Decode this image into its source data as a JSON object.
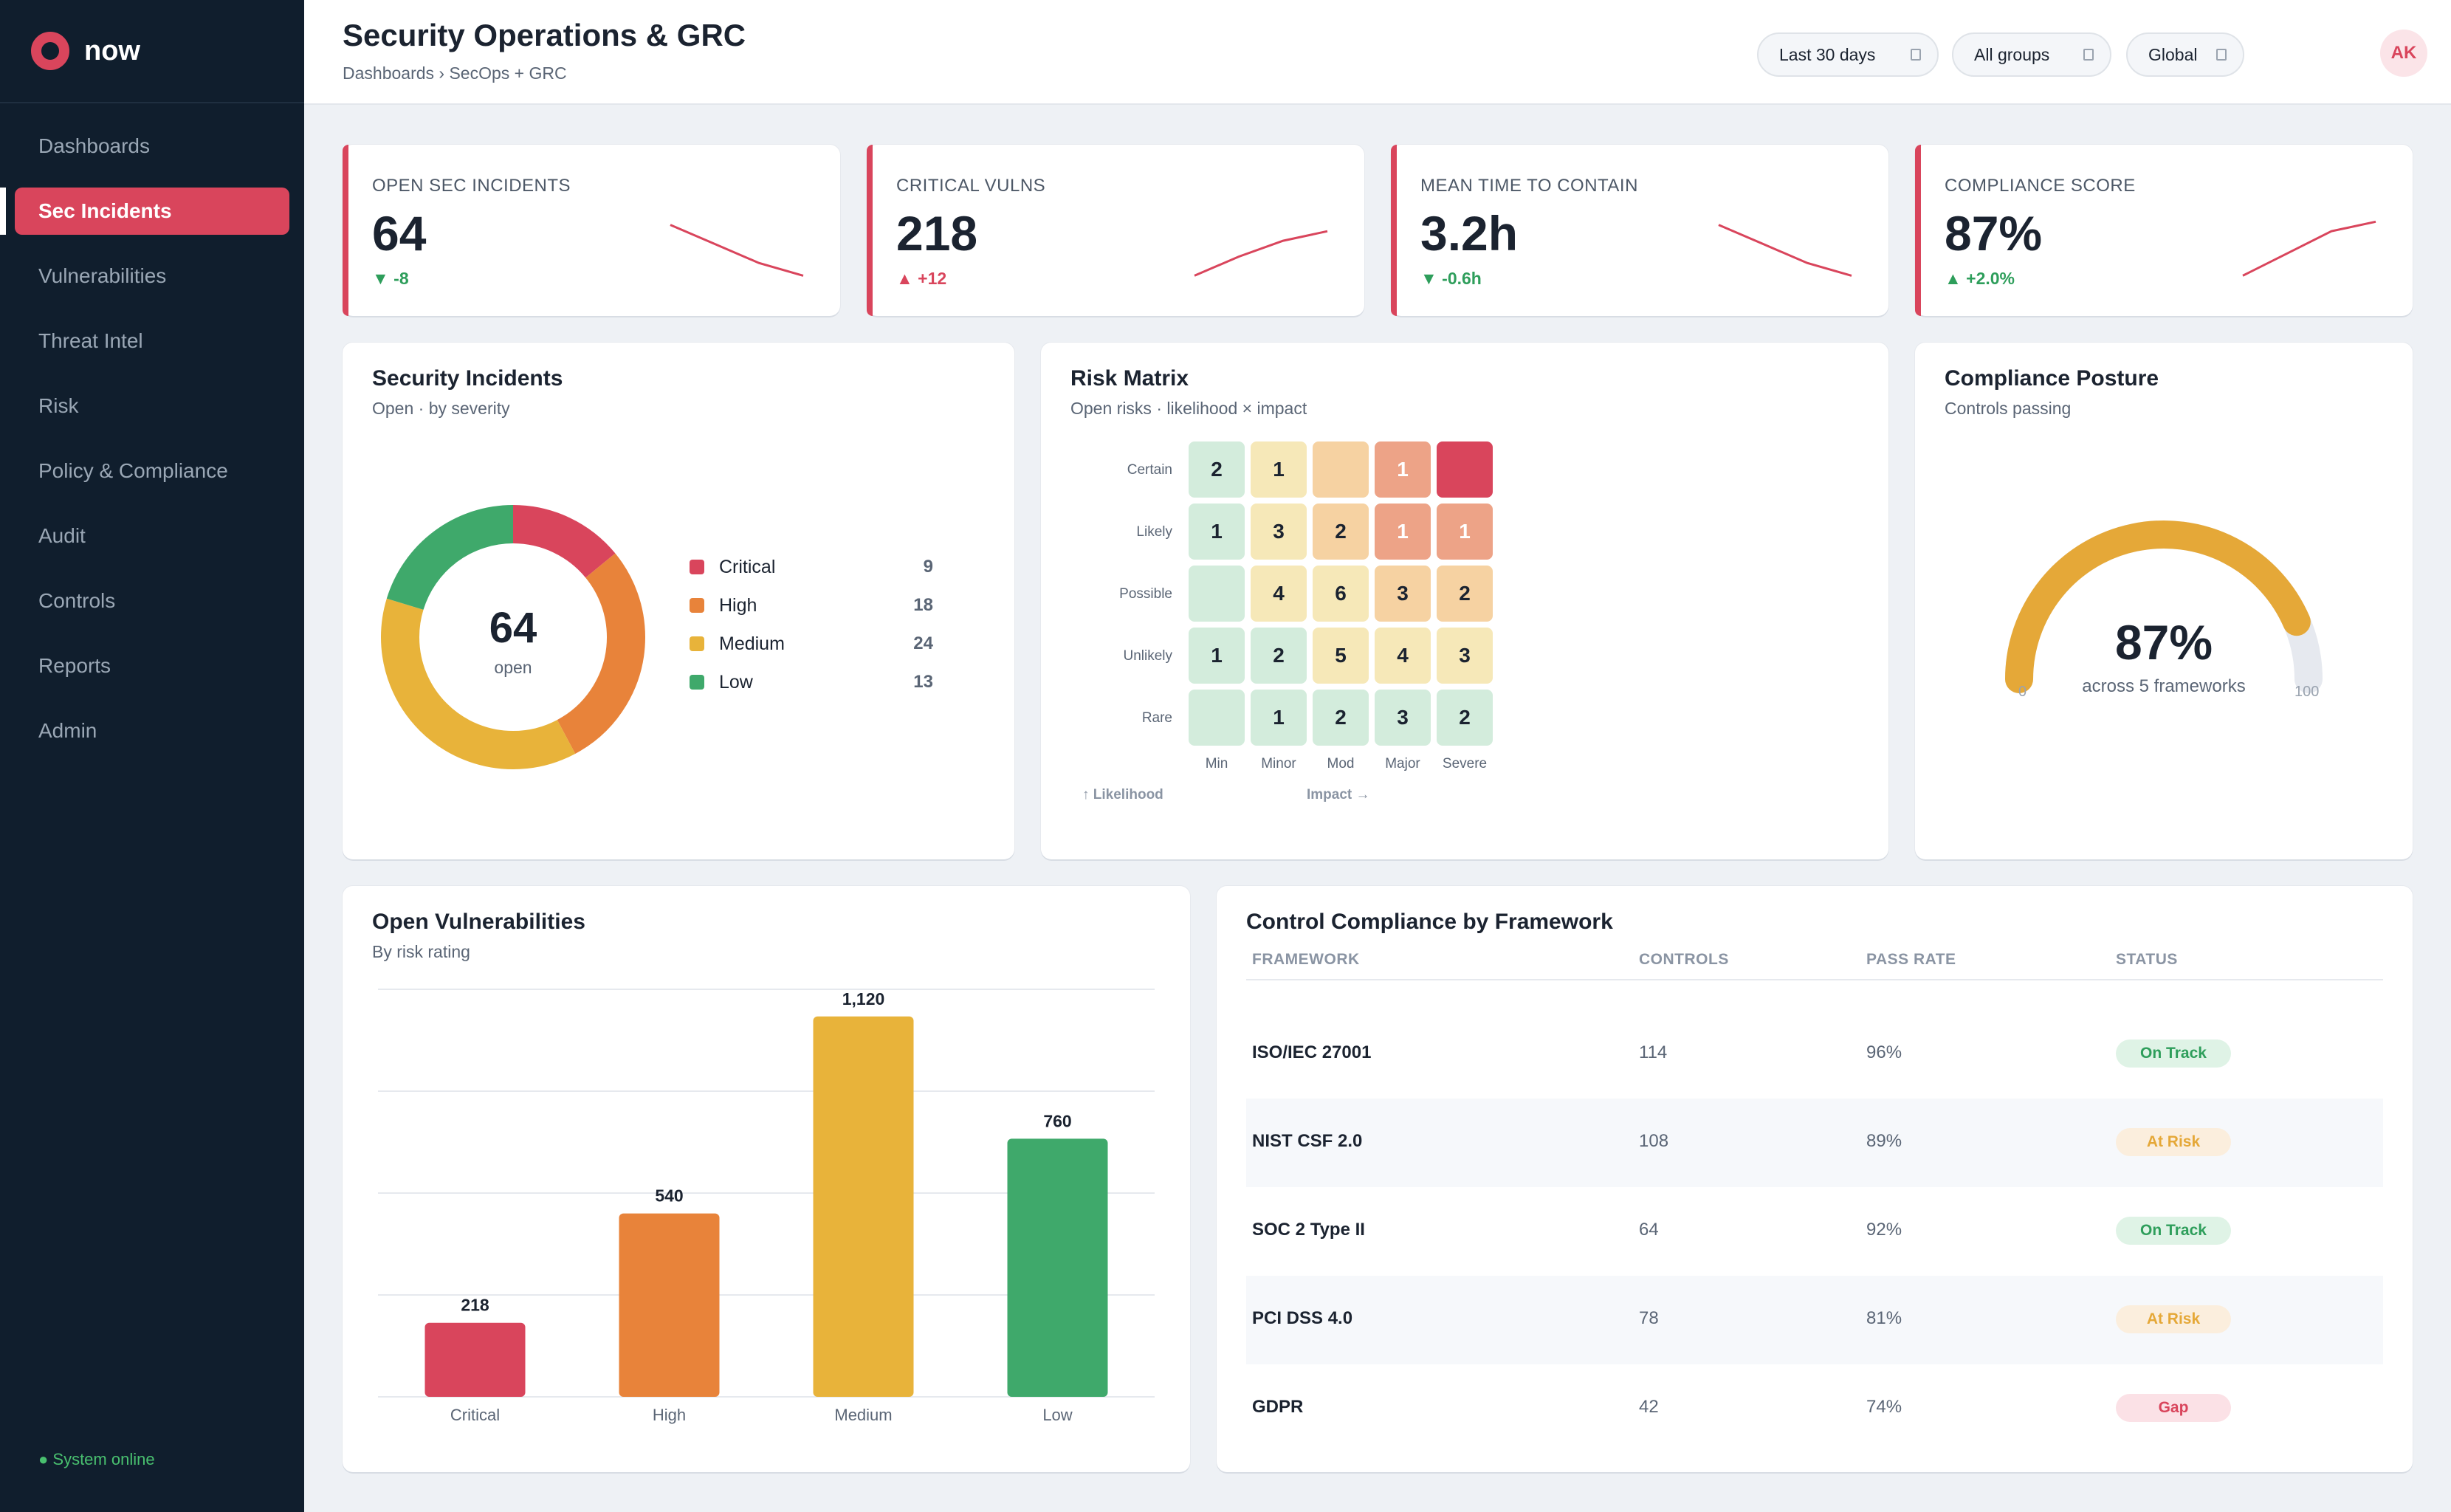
{
  "brand": {
    "name": "now"
  },
  "sidebar": {
    "items": [
      {
        "label": "Dashboards",
        "active": false
      },
      {
        "label": "Sec Incidents",
        "active": true
      },
      {
        "label": "Vulnerabilities",
        "active": false
      },
      {
        "label": "Threat Intel",
        "active": false
      },
      {
        "label": "Risk",
        "active": false
      },
      {
        "label": "Policy & Compliance",
        "active": false
      },
      {
        "label": "Audit",
        "active": false
      },
      {
        "label": "Controls",
        "active": false
      },
      {
        "label": "Reports",
        "active": false
      },
      {
        "label": "Admin",
        "active": false
      }
    ],
    "status": "● System online"
  },
  "header": {
    "title": "Security Operations & GRC",
    "breadcrumb": "Dashboards › SecOps + GRC",
    "filters": [
      {
        "label": "Last 30 days"
      },
      {
        "label": "All groups"
      },
      {
        "label": "Global"
      }
    ],
    "avatar": "AK"
  },
  "kpis": [
    {
      "label": "OPEN SEC INCIDENTS",
      "value": "64",
      "delta": "▼ -8",
      "tone": "good",
      "trend": [
        9,
        6,
        3,
        1
      ]
    },
    {
      "label": "CRITICAL VULNS",
      "value": "218",
      "delta": "▲ +12",
      "tone": "bad",
      "trend": [
        1,
        4,
        6.5,
        8
      ]
    },
    {
      "label": "MEAN TIME TO CONTAIN",
      "value": "3.2h",
      "delta": "▼ -0.6h",
      "tone": "good",
      "trend": [
        9,
        6,
        3,
        1
      ]
    },
    {
      "label": "COMPLIANCE SCORE",
      "value": "87%",
      "delta": "▲ +2.0%",
      "tone": "good",
      "trend": [
        1,
        4.5,
        8,
        9.5
      ]
    }
  ],
  "incidents": {
    "title": "Security Incidents",
    "subtitle": "Open · by severity",
    "total": "64",
    "total_label": "open",
    "segments": [
      {
        "name": "Critical",
        "count": "9",
        "value": 9,
        "color": "#d9455c"
      },
      {
        "name": "High",
        "count": "18",
        "value": 18,
        "color": "#e8833a"
      },
      {
        "name": "Medium",
        "count": "24",
        "value": 24,
        "color": "#e8b33a"
      },
      {
        "name": "Low",
        "count": "13",
        "value": 13,
        "color": "#3fa96b"
      }
    ]
  },
  "risk_matrix": {
    "title": "Risk Matrix",
    "subtitle": "Open risks · likelihood × impact",
    "rows": [
      "Certain",
      "Likely",
      "Possible",
      "Unlikely",
      "Rare"
    ],
    "cols": [
      "Min",
      "Minor",
      "Mod",
      "Major",
      "Severe"
    ],
    "cells": [
      [
        {
          "v": "2",
          "c": "#d3ecdc"
        },
        {
          "v": "1",
          "c": "#f6e8b8"
        },
        {
          "v": "",
          "c": "#f6d2a2"
        },
        {
          "v": "1",
          "c": "#eda387"
        },
        {
          "v": "",
          "c": "#d9455c"
        }
      ],
      [
        {
          "v": "1",
          "c": "#d3ecdc"
        },
        {
          "v": "3",
          "c": "#f6e8b8"
        },
        {
          "v": "2",
          "c": "#f6d2a2"
        },
        {
          "v": "1",
          "c": "#eda387"
        },
        {
          "v": "1",
          "c": "#eda387"
        }
      ],
      [
        {
          "v": "",
          "c": "#d3ecdc"
        },
        {
          "v": "4",
          "c": "#f6e8b8"
        },
        {
          "v": "6",
          "c": "#f6e8b8"
        },
        {
          "v": "3",
          "c": "#f6d2a2"
        },
        {
          "v": "2",
          "c": "#f6d2a2"
        }
      ],
      [
        {
          "v": "1",
          "c": "#d3ecdc"
        },
        {
          "v": "2",
          "c": "#d3ecdc"
        },
        {
          "v": "5",
          "c": "#f6e8b8"
        },
        {
          "v": "4",
          "c": "#f6e8b8"
        },
        {
          "v": "3",
          "c": "#f6e8b8"
        }
      ],
      [
        {
          "v": "",
          "c": "#d3ecdc"
        },
        {
          "v": "1",
          "c": "#d3ecdc"
        },
        {
          "v": "2",
          "c": "#d3ecdc"
        },
        {
          "v": "3",
          "c": "#d3ecdc"
        },
        {
          "v": "2",
          "c": "#d3ecdc"
        }
      ]
    ],
    "axis_y": "↑ Likelihood",
    "axis_x": "Impact →"
  },
  "compliance": {
    "title": "Compliance Posture",
    "subtitle": "Controls passing",
    "value": "87%",
    "fraction": 0.87,
    "caption": "across 5 frameworks",
    "min": "0",
    "max": "100",
    "color": "#e5a838"
  },
  "vulns": {
    "title": "Open Vulnerabilities",
    "subtitle": "By risk rating"
  },
  "chart_data": {
    "type": "bar",
    "categories": [
      "Critical",
      "High",
      "Medium",
      "Low"
    ],
    "values": [
      218,
      540,
      1120,
      760
    ],
    "value_labels": [
      "218",
      "540",
      "1,120",
      "760"
    ],
    "colors": [
      "#d9455c",
      "#e8833a",
      "#e8b33a",
      "#3fa96b"
    ],
    "ylim": [
      0,
      1200
    ],
    "grid": true,
    "title": "Open Vulnerabilities",
    "subtitle": "By risk rating",
    "xlabel": "",
    "ylabel": ""
  },
  "frameworks": {
    "title": "Control Compliance by Framework",
    "columns": [
      "FRAMEWORK",
      "CONTROLS",
      "PASS RATE",
      "STATUS"
    ],
    "rows": [
      {
        "name": "ISO/IEC 27001",
        "controls": "114",
        "pass": "96%",
        "status": "On Track",
        "tone": "ok"
      },
      {
        "name": "NIST CSF 2.0",
        "controls": "108",
        "pass": "89%",
        "status": "At Risk",
        "tone": "warn"
      },
      {
        "name": "SOC 2 Type II",
        "controls": "64",
        "pass": "92%",
        "status": "On Track",
        "tone": "ok"
      },
      {
        "name": "PCI DSS 4.0",
        "controls": "78",
        "pass": "81%",
        "status": "At Risk",
        "tone": "warn"
      },
      {
        "name": "GDPR",
        "controls": "42",
        "pass": "74%",
        "status": "Gap",
        "tone": "bad"
      }
    ]
  }
}
